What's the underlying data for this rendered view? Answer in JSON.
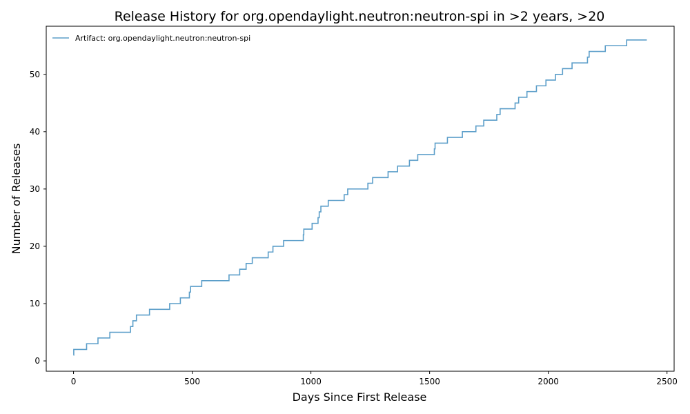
{
  "chart_data": {
    "type": "line",
    "drawstyle": "steps-post",
    "title": "Release History for org.opendaylight.neutron:neutron-spi in >2 years, >20",
    "xlabel": "Days Since First Release",
    "ylabel": "Number of Releases",
    "xlim": [
      -115,
      2530
    ],
    "ylim": [
      -1.8,
      58.4
    ],
    "xticks": [
      0,
      500,
      1000,
      1500,
      2000,
      2500
    ],
    "yticks": [
      0,
      10,
      20,
      30,
      40,
      50
    ],
    "grid": false,
    "legend": "top-left",
    "color": "#5b9ec9",
    "series": [
      {
        "name": "Artifact: org.opendaylight.neutron:neutron-spi",
        "x": [
          0,
          1,
          55,
          103,
          153,
          240,
          250,
          265,
          320,
          405,
          450,
          488,
          493,
          540,
          655,
          700,
          727,
          753,
          820,
          840,
          885,
          968,
          970,
          1005,
          1030,
          1035,
          1038,
          1042,
          1073,
          1140,
          1155,
          1240,
          1260,
          1325,
          1365,
          1415,
          1450,
          1520,
          1523,
          1575,
          1638,
          1695,
          1728,
          1783,
          1797,
          1860,
          1875,
          1910,
          1950,
          1990,
          2030,
          2060,
          2100,
          2165,
          2172,
          2240,
          2330,
          2415
        ],
        "y": [
          1,
          2,
          3,
          4,
          5,
          6,
          7,
          8,
          9,
          10,
          11,
          12,
          13,
          14,
          15,
          16,
          17,
          18,
          19,
          20,
          21,
          22,
          23,
          24,
          25,
          26,
          26,
          27,
          28,
          29,
          30,
          31,
          32,
          33,
          34,
          35,
          36,
          37,
          38,
          39,
          40,
          41,
          42,
          43,
          44,
          45,
          46,
          47,
          48,
          49,
          50,
          51,
          52,
          53,
          54,
          55,
          56,
          56
        ]
      }
    ]
  }
}
